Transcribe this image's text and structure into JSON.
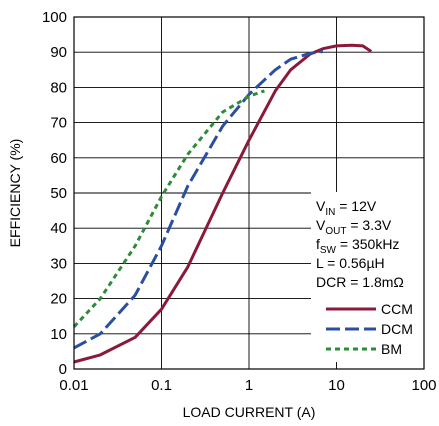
{
  "chart_data": {
    "type": "line",
    "xlabel": "LOAD CURRENT (A)",
    "ylabel": "EFFICIENCY (%)",
    "x_scale": "log",
    "xlim": [
      0.01,
      100
    ],
    "ylim": [
      0,
      100
    ],
    "x_ticks": [
      "0.01",
      "0.1",
      "1",
      "10",
      "100"
    ],
    "y_ticks": [
      "0",
      "10",
      "20",
      "30",
      "40",
      "50",
      "60",
      "70",
      "80",
      "90",
      "100"
    ],
    "grid": true,
    "conditions": {
      "vin": {
        "main": "V",
        "sub": "IN",
        "rest": " = 12V"
      },
      "vout": {
        "main": "V",
        "sub": "OUT",
        "rest": " = 3.3V"
      },
      "fsw": {
        "main": "f",
        "sub": "SW",
        "rest": " = 350kHz"
      },
      "l": "L = 0.56µH",
      "dcr": "DCR = 1.8mΩ"
    },
    "series": [
      {
        "name": "CCM",
        "color": "#8b1a3a",
        "dash": "solid",
        "x": [
          0.01,
          0.02,
          0.05,
          0.1,
          0.2,
          0.5,
          1,
          2,
          3,
          5,
          7,
          10,
          15,
          20,
          25
        ],
        "y": [
          2,
          4,
          9,
          17,
          29,
          50,
          65,
          79,
          85,
          89.5,
          91,
          91.8,
          92,
          91.8,
          90.2
        ]
      },
      {
        "name": "DCM",
        "color": "#2b4fa0",
        "dash": "long",
        "x": [
          0.01,
          0.02,
          0.05,
          0.1,
          0.2,
          0.5,
          1,
          2,
          3,
          5,
          7
        ],
        "y": [
          6,
          10,
          21,
          35,
          52,
          69,
          78,
          85,
          88,
          89.7,
          90.2
        ]
      },
      {
        "name": "BM",
        "color": "#2e8b3a",
        "dash": "short",
        "x": [
          0.01,
          0.02,
          0.05,
          0.1,
          0.2,
          0.5,
          0.8,
          1,
          1.5
        ],
        "y": [
          12,
          20,
          35,
          49,
          61,
          73,
          76,
          77.5,
          79
        ]
      }
    ]
  }
}
